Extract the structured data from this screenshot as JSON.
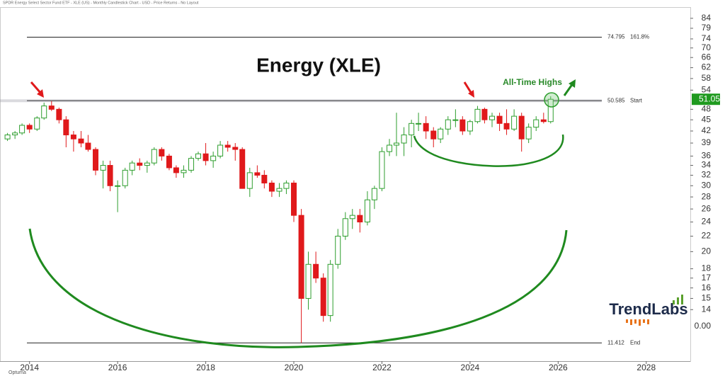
{
  "chart_data": {
    "type": "candlestick",
    "title": "Energy (XLE)",
    "subtitle": "SPDR Energy Select Sector Fund ETF - XLE (US) - Monthly Candlestick Chart - USD - Price Returns - No Layout",
    "annotation": "All-Time Highs",
    "watermark": "TrendLabs",
    "source": "Optuma",
    "axis_note": "0.00",
    "log_scale": true,
    "up_color": "#2e9e2e",
    "down_color": "#e0191b",
    "xlim": [
      2013.33,
      2029
    ],
    "xticks": [
      2014,
      2016,
      2018,
      2020,
      2022,
      2024,
      2026,
      2028
    ],
    "ylim": [
      10.2,
      90
    ],
    "yticks": [
      84,
      79,
      74,
      70,
      66,
      62,
      58,
      54,
      48,
      45,
      42,
      39,
      36,
      34,
      32,
      30,
      28,
      26,
      24,
      22,
      20,
      18,
      17,
      16,
      15,
      14
    ],
    "last_price": 51.05,
    "levels": [
      {
        "value": 74.795,
        "label": "161.8%"
      },
      {
        "value": 50.585,
        "label": "Start"
      },
      {
        "value": 11.412,
        "label": "End"
      }
    ],
    "x": [
      2013.5,
      2013.67,
      2013.83,
      2014.0,
      2014.17,
      2014.33,
      2014.5,
      2014.67,
      2014.83,
      2015.0,
      2015.17,
      2015.33,
      2015.5,
      2015.67,
      2015.83,
      2016.0,
      2016.17,
      2016.33,
      2016.5,
      2016.67,
      2016.83,
      2017.0,
      2017.17,
      2017.33,
      2017.5,
      2017.67,
      2017.83,
      2018.0,
      2018.17,
      2018.33,
      2018.5,
      2018.67,
      2018.83,
      2019.0,
      2019.17,
      2019.33,
      2019.5,
      2019.67,
      2019.83,
      2020.0,
      2020.17,
      2020.33,
      2020.5,
      2020.67,
      2020.83,
      2021.0,
      2021.17,
      2021.33,
      2021.5,
      2021.67,
      2021.83,
      2022.0,
      2022.17,
      2022.33,
      2022.5,
      2022.67,
      2022.83,
      2023.0,
      2023.17,
      2023.33,
      2023.5,
      2023.67,
      2023.83,
      2024.0,
      2024.17,
      2024.33,
      2024.5,
      2024.67,
      2024.83,
      2025.0,
      2025.17,
      2025.33,
      2025.5,
      2025.67,
      2025.83
    ],
    "open": [
      40,
      41,
      41.5,
      43.5,
      42.5,
      45.5,
      49,
      48,
      45,
      41,
      40,
      39,
      37.5,
      33,
      34,
      30,
      30,
      33,
      34.5,
      34,
      34.5,
      37.5,
      36,
      33.5,
      32.5,
      33,
      35.5,
      36.5,
      35,
      36,
      38.5,
      38,
      37.5,
      29.5,
      32.5,
      32,
      30.5,
      29,
      29.5,
      30.5,
      25,
      15,
      18.5,
      17,
      13.5,
      18.5,
      22,
      24.5,
      25,
      24,
      27.5,
      29.5,
      37,
      38.5,
      39,
      41,
      44,
      44,
      42,
      40,
      42.5,
      45,
      45,
      42,
      44.5,
      48,
      45,
      46,
      44,
      42.5,
      46,
      40,
      43,
      45,
      44.5
    ],
    "high": [
      41.5,
      42,
      44,
      44,
      46,
      50,
      50.5,
      48.5,
      46,
      42,
      42,
      41,
      38,
      35,
      35,
      31,
      33.5,
      35,
      35.5,
      35,
      38,
      38,
      36.5,
      34,
      34,
      36,
      37,
      39,
      37,
      39.5,
      39.5,
      39,
      38,
      33.5,
      34,
      33,
      31,
      30.5,
      31,
      31,
      26,
      20,
      20,
      17.5,
      19,
      23,
      25.5,
      26,
      26,
      29,
      30,
      38,
      40,
      47,
      43,
      45,
      47,
      46,
      43,
      43,
      46,
      48,
      46,
      45,
      49,
      48.5,
      47,
      47,
      48,
      48,
      47,
      44,
      46,
      47,
      52
    ],
    "low": [
      39.5,
      40,
      41,
      41.5,
      42,
      45,
      47.5,
      44,
      38,
      37,
      38,
      37,
      32,
      29.5,
      29,
      25.5,
      29.5,
      32,
      33,
      32.5,
      34,
      35,
      33,
      31.5,
      31.5,
      32.5,
      35,
      34,
      33.5,
      35.5,
      37,
      35,
      29.5,
      28,
      31.5,
      29.5,
      28,
      28,
      28.5,
      24,
      11.412,
      14,
      16.5,
      13,
      13,
      18,
      21.5,
      23,
      22.5,
      23.5,
      26,
      29,
      36,
      36,
      36,
      38,
      42,
      40,
      38,
      39,
      41,
      43,
      41,
      41,
      44,
      44,
      43,
      42,
      41,
      42,
      37,
      39,
      42,
      44,
      44
    ],
    "close": [
      41,
      41.5,
      43.5,
      42.5,
      45.5,
      49,
      48,
      45,
      41,
      40,
      39,
      37.5,
      33,
      34,
      30,
      30,
      33,
      34.5,
      34,
      34.5,
      37.5,
      36,
      33.5,
      32.5,
      33,
      35.5,
      36.5,
      35,
      36,
      38.5,
      38,
      37.5,
      29.5,
      32.5,
      32,
      30.5,
      29,
      29.5,
      30.5,
      25,
      15,
      18.5,
      17,
      13.5,
      18.5,
      22,
      24.5,
      25,
      24,
      27.5,
      29.5,
      37,
      38.5,
      39,
      41,
      44,
      44,
      42,
      40,
      42.5,
      45,
      45,
      42,
      44.5,
      48,
      45,
      46,
      44,
      42.5,
      46,
      40,
      43,
      45,
      44.5,
      51.05
    ]
  }
}
